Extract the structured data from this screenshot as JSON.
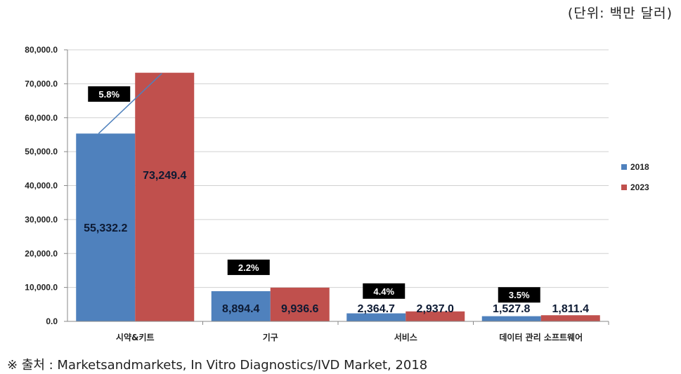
{
  "unit_note": "(단위: 백만 달러)",
  "source_note": "※ 출처 : Marketsandmarkets, In Vitro Diagnostics/IVD Market, 2018",
  "chart_data": {
    "type": "bar",
    "categories": [
      "시약&키트",
      "기구",
      "서비스",
      "데이터 관리 소프트웨어"
    ],
    "series": [
      {
        "name": "2018",
        "color": "#4f81bd",
        "values": [
          55332.2,
          8894.4,
          2364.7,
          1527.8
        ],
        "labels": [
          "55,332.2",
          "8,894.4",
          "2,364.7",
          "1,527.8"
        ]
      },
      {
        "name": "2023",
        "color": "#c0504d",
        "values": [
          73249.4,
          9936.6,
          2937.0,
          1811.4
        ],
        "labels": [
          "73,249.4",
          "9,936.6",
          "2,937.0",
          "1,811.4"
        ]
      }
    ],
    "growth_labels": [
      "5.8%",
      "2.2%",
      "4.4%",
      "3.5%"
    ],
    "ylim": [
      0,
      80000
    ],
    "yticks": [
      0,
      10000,
      20000,
      30000,
      40000,
      50000,
      60000,
      70000,
      80000
    ],
    "ytick_labels": [
      "0.0",
      "10,000.0",
      "20,000.0",
      "30,000.0",
      "40,000.0",
      "50,000.0",
      "60,000.0",
      "70,000.0",
      "80,000.0"
    ],
    "grid": true,
    "legend_position": "right"
  }
}
